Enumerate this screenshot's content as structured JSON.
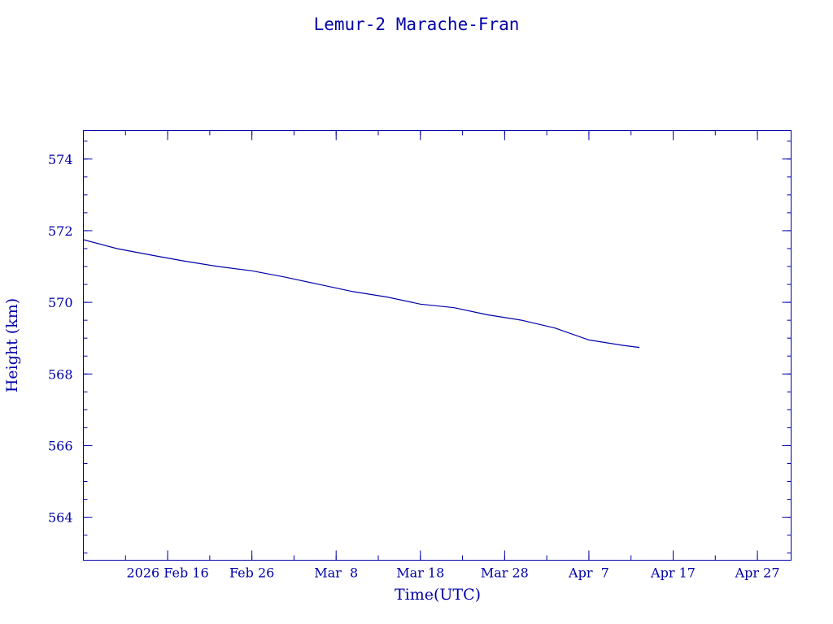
{
  "chart_data": {
    "type": "line",
    "title": "Lemur-2 Marache-Fran",
    "xlabel": "Time(UTC)",
    "ylabel": "Height (km)",
    "x_range": [
      "2026-02-06",
      "2026-05-01"
    ],
    "ylim": [
      562.8,
      574.8
    ],
    "y_major_ticks": [
      564,
      566,
      568,
      570,
      572,
      574
    ],
    "y_minor_step": 0.5,
    "x_tick_labels": [
      {
        "date": "2026-02-16",
        "label": "2026 Feb 16"
      },
      {
        "date": "2026-02-26",
        "label": "Feb 26"
      },
      {
        "date": "2026-03-08",
        "label": "Mar  8"
      },
      {
        "date": "2026-03-18",
        "label": "Mar 18"
      },
      {
        "date": "2026-03-28",
        "label": "Mar 28"
      },
      {
        "date": "2026-04-07",
        "label": "Apr  7"
      },
      {
        "date": "2026-04-17",
        "label": "Apr 17"
      },
      {
        "date": "2026-04-27",
        "label": "Apr 27"
      }
    ],
    "grid": false,
    "series": [
      {
        "x": [
          "2026-02-06",
          "2026-02-10",
          "2026-02-14",
          "2026-02-18",
          "2026-02-22",
          "2026-02-26",
          "2026-03-02",
          "2026-03-06",
          "2026-03-10",
          "2026-03-14",
          "2026-03-18",
          "2026-03-22",
          "2026-03-26",
          "2026-03-30",
          "2026-04-03",
          "2026-04-07",
          "2026-04-11",
          "2026-04-13"
        ],
        "values": [
          571.75,
          571.5,
          571.32,
          571.15,
          571.0,
          570.88,
          570.7,
          570.5,
          570.3,
          570.15,
          569.95,
          569.85,
          569.65,
          569.5,
          569.28,
          568.95,
          568.8,
          568.74
        ]
      }
    ],
    "colors": {
      "foreground": "#0000a8",
      "background": "#ffffff"
    }
  }
}
